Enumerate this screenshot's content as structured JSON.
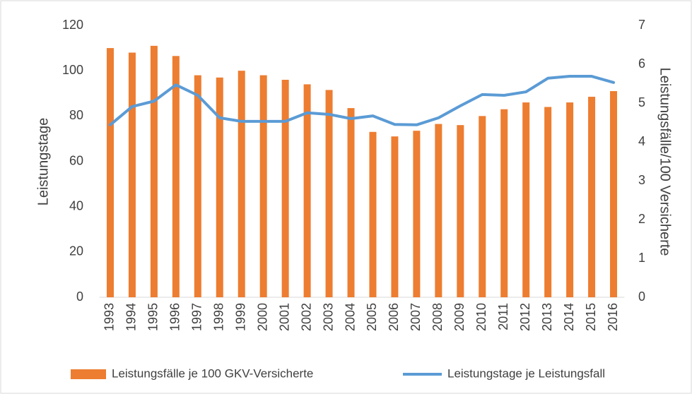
{
  "chart_data": {
    "type": "combo",
    "categories": [
      "1993",
      "1994",
      "1995",
      "1996",
      "1997",
      "1998",
      "1999",
      "2000",
      "2001",
      "2002",
      "2003",
      "2004",
      "2005",
      "2006",
      "2007",
      "2008",
      "2009",
      "2010",
      "2011",
      "2012",
      "2013",
      "2014",
      "2015",
      "2016"
    ],
    "series": [
      {
        "name": "Leistungsfälle je 100 GKV-Versicherte",
        "type": "bar",
        "axis": "y",
        "color": "#ed7d31",
        "values": [
          110,
          108,
          111,
          106.5,
          98,
          97,
          100,
          98,
          96,
          94,
          91.5,
          83.5,
          73,
          71,
          73.5,
          76.5,
          76,
          80,
          83,
          86,
          84,
          86,
          88.5,
          91
        ]
      },
      {
        "name": "Leistungstage je Leistungsfall",
        "type": "line",
        "axis": "y2",
        "color": "#5b9bd5",
        "values": [
          4.44,
          4.91,
          5.05,
          5.47,
          5.2,
          4.62,
          4.53,
          4.53,
          4.53,
          4.75,
          4.71,
          4.6,
          4.67,
          4.45,
          4.44,
          4.62,
          4.93,
          5.22,
          5.2,
          5.29,
          5.64,
          5.69,
          5.69,
          5.53
        ]
      }
    ],
    "y_label": "Leistungstage",
    "y2_label": "Leistungsfälle/100 Versicherte",
    "ylim": [
      0,
      120
    ],
    "yticks": [
      0,
      20,
      40,
      60,
      80,
      100,
      120
    ],
    "y2lim": [
      0,
      7
    ],
    "y2ticks": [
      0,
      1,
      2,
      3,
      4,
      5,
      6,
      7
    ],
    "grid": false,
    "legend": "bottom"
  }
}
